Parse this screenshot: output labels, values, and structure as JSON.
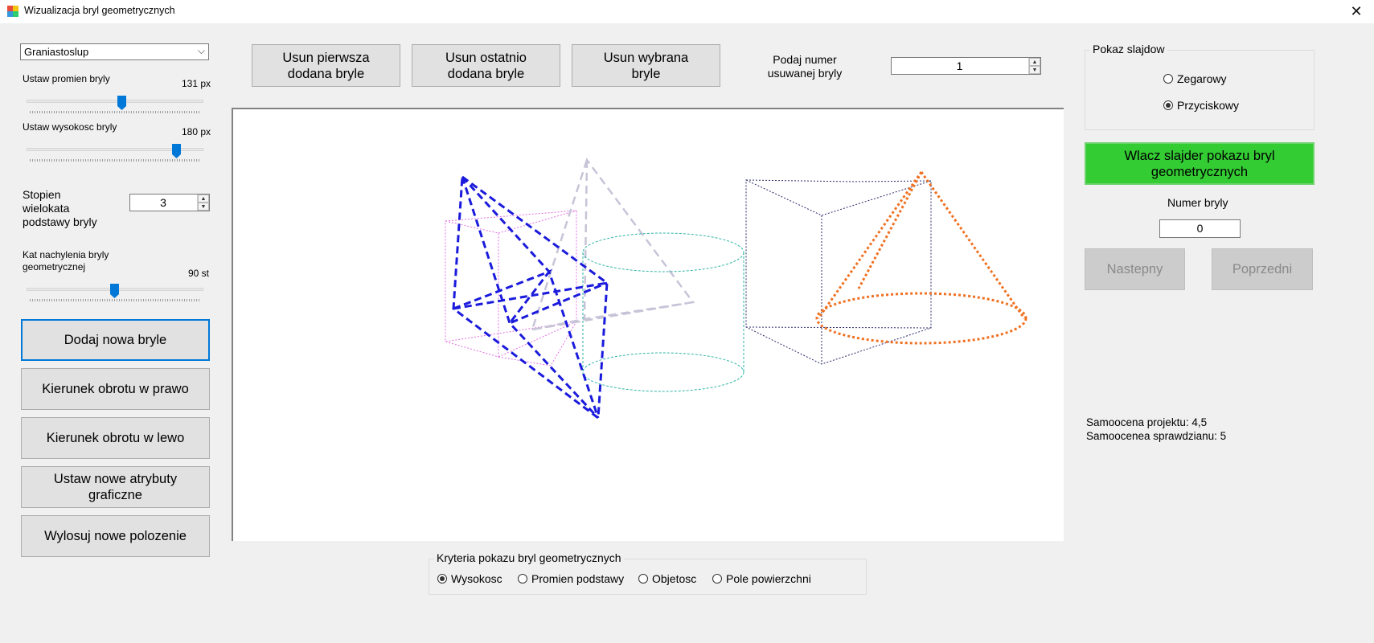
{
  "window": {
    "title": "Wizualizacja bryl geometrycznych",
    "close_glyph": "✕"
  },
  "left": {
    "shape_select": {
      "value": "Graniastoslup",
      "arrow": "⌵"
    },
    "radius": {
      "label": "Ustaw promien bryly",
      "value_text": "131 px",
      "level": 0.53
    },
    "height": {
      "label": "Ustaw wysokosc bryly",
      "value_text": "180 px",
      "level": 0.88
    },
    "polygon_degree": {
      "label": "Stopien\nwielokata\npodstawy bryly",
      "value": "3"
    },
    "tilt": {
      "label": "Kat nachylenia bryly\ngeometrycznej",
      "value_text": "90 st",
      "level": 0.5
    },
    "buttons": {
      "add": "Dodaj nowa bryle",
      "rotate_right": "Kierunek obrotu w prawo",
      "rotate_left": "Kierunek obrotu w lewo",
      "set_attributes": "Ustaw nowe atrybuty\ngraficzne",
      "random_position": "Wylosuj nowe polozenie"
    }
  },
  "top": {
    "remove_first": "Usun pierwsza\ndodana bryle",
    "remove_last": "Usun ostatnio\ndodana bryle",
    "remove_selected": "Usun wybrana\nbryle",
    "remove_number_label": "Podaj numer\nusuwanej bryly",
    "remove_number_value": "1"
  },
  "slideshow": {
    "group_title": "Pokaz slajdow",
    "options": [
      {
        "label": "Zegarowy",
        "checked": false
      },
      {
        "label": "Przyciskowy",
        "checked": true
      }
    ],
    "toggle_button": "Wlacz slajder pokazu bryl\ngeometrycznych",
    "number_label": "Numer bryly",
    "number_value": "0",
    "next": "Nastepny",
    "prev": "Poprzedni"
  },
  "self_assessment": {
    "project": "Samoocena projektu: 4,5",
    "test": "Samoocenea sprawdzianu: 5"
  },
  "criteria": {
    "group_title": "Kryteria pokazu bryl geometrycznych",
    "options": [
      {
        "label": "Wysokosc",
        "checked": true
      },
      {
        "label": "Promien podstawy",
        "checked": false
      },
      {
        "label": "Objetosc",
        "checked": false
      },
      {
        "label": "Pole powierzchni",
        "checked": false
      }
    ]
  },
  "shape_colors": {
    "blue": "#1a1adc",
    "magenta": "#e36ee3",
    "lavender": "#c8c4d8",
    "teal": "#2fb5a8",
    "navy": "#2a2a6a",
    "orange": "#f07020",
    "accent": "#0078d7",
    "green": "#33cc33"
  }
}
